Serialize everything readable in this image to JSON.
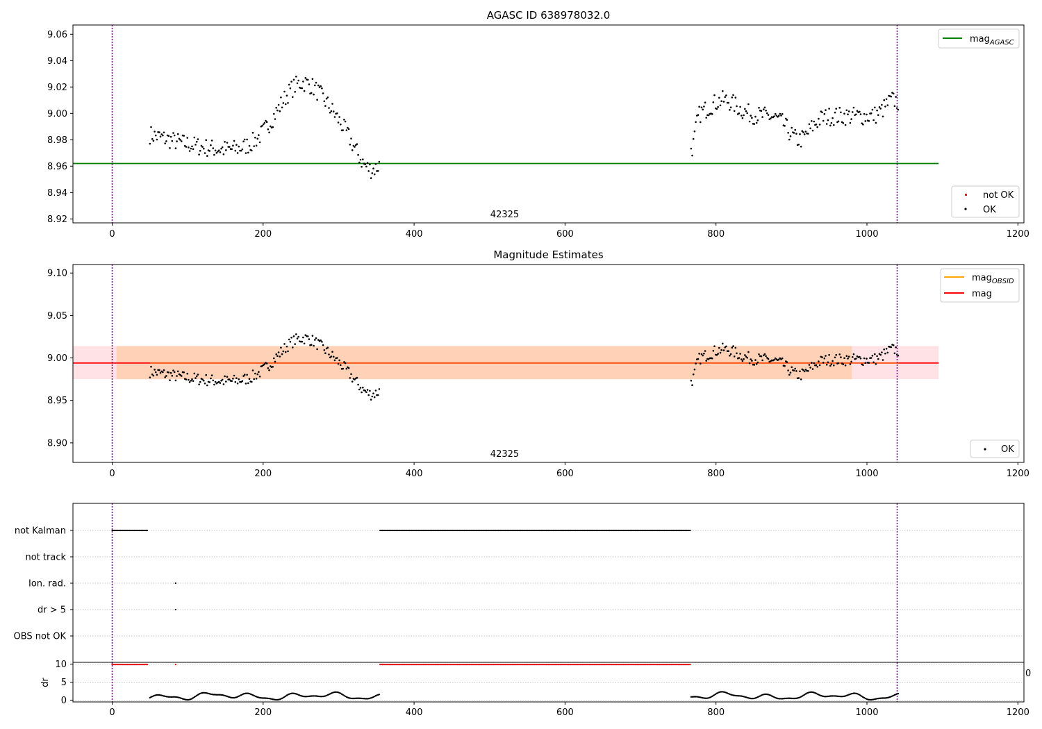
{
  "colors": {
    "ok": "#000000",
    "not_ok": "#e41a1c",
    "agasc_line": "#008000",
    "obsid_line": "#ffa500",
    "mag_line": "#ff0000",
    "band_inner": "#ffd2b8",
    "band_outer": "#ffe2e6",
    "vline": "#800080",
    "grid": "#b0b0b0"
  },
  "chart_data": [
    {
      "type": "scatter",
      "title": "AGASC ID 638978032.0",
      "annotation": "42325",
      "xlim": [
        -52,
        1208
      ],
      "ylim": [
        8.917,
        9.067
      ],
      "xticks": [
        0,
        200,
        400,
        600,
        800,
        1000,
        1200
      ],
      "yticks": [
        8.92,
        8.94,
        8.96,
        8.98,
        9.0,
        9.02,
        9.04,
        9.06
      ],
      "hline": 8.962,
      "hline_x": [
        -52,
        1095
      ],
      "vlines": [
        0,
        1040
      ],
      "legend": {
        "lines": [
          "mag_AGASC"
        ],
        "points": [
          "not OK",
          "OK"
        ]
      },
      "series": [
        {
          "name": "OK",
          "segments": [
            [
              50,
              355
            ],
            [
              767,
              1042
            ]
          ]
        },
        {
          "name": "not OK",
          "segments": []
        }
      ]
    },
    {
      "type": "scatter",
      "title": "Magnitude Estimates",
      "annotation": "42325",
      "xlim": [
        -52,
        1208
      ],
      "ylim": [
        8.877,
        9.11
      ],
      "xticks": [
        0,
        200,
        400,
        600,
        800,
        1000,
        1200
      ],
      "yticks": [
        8.9,
        8.95,
        9.0,
        9.05,
        9.1
      ],
      "band_outer": [
        8.975,
        9.014
      ],
      "band_inner": [
        8.975,
        9.014
      ],
      "band_inner_x": [
        50,
        1042
      ],
      "mag_obsid": 8.994,
      "mag": 8.994,
      "vlines": [
        0,
        1040
      ],
      "legend": {
        "lines": [
          "mag_OBSID",
          "mag"
        ],
        "points": [
          "OK"
        ]
      },
      "series": [
        {
          "name": "OK",
          "segments": [
            [
              50,
              355
            ],
            [
              767,
              1042
            ]
          ]
        }
      ]
    },
    {
      "type": "scatter",
      "title": "",
      "xlim": [
        -52,
        1208
      ],
      "xticks": [
        0,
        200,
        400,
        600,
        800,
        1000,
        1200
      ],
      "flag_categories": [
        "not Kalman",
        "not track",
        "Ion. rad.",
        "dr > 5",
        "OBS not OK"
      ],
      "flags": {
        "not Kalman": [
          [
            0,
            48
          ],
          [
            355,
            767
          ]
        ],
        "Ion. rad.": [
          [
            84,
            84
          ]
        ],
        "dr > 5": [
          [
            84,
            84
          ]
        ]
      },
      "vlines": [
        0,
        1040
      ],
      "stray_tick": "0",
      "dr_panel": {
        "ylabel": "dr",
        "yticks": [
          0,
          5,
          10
        ],
        "ylim": [
          -0.5,
          10.5
        ],
        "clipped_at_10": [
          [
            0,
            48
          ],
          [
            84,
            84
          ],
          [
            355,
            767
          ]
        ],
        "segments": [
          [
            50,
            355
          ],
          [
            767,
            1042
          ]
        ]
      }
    }
  ]
}
